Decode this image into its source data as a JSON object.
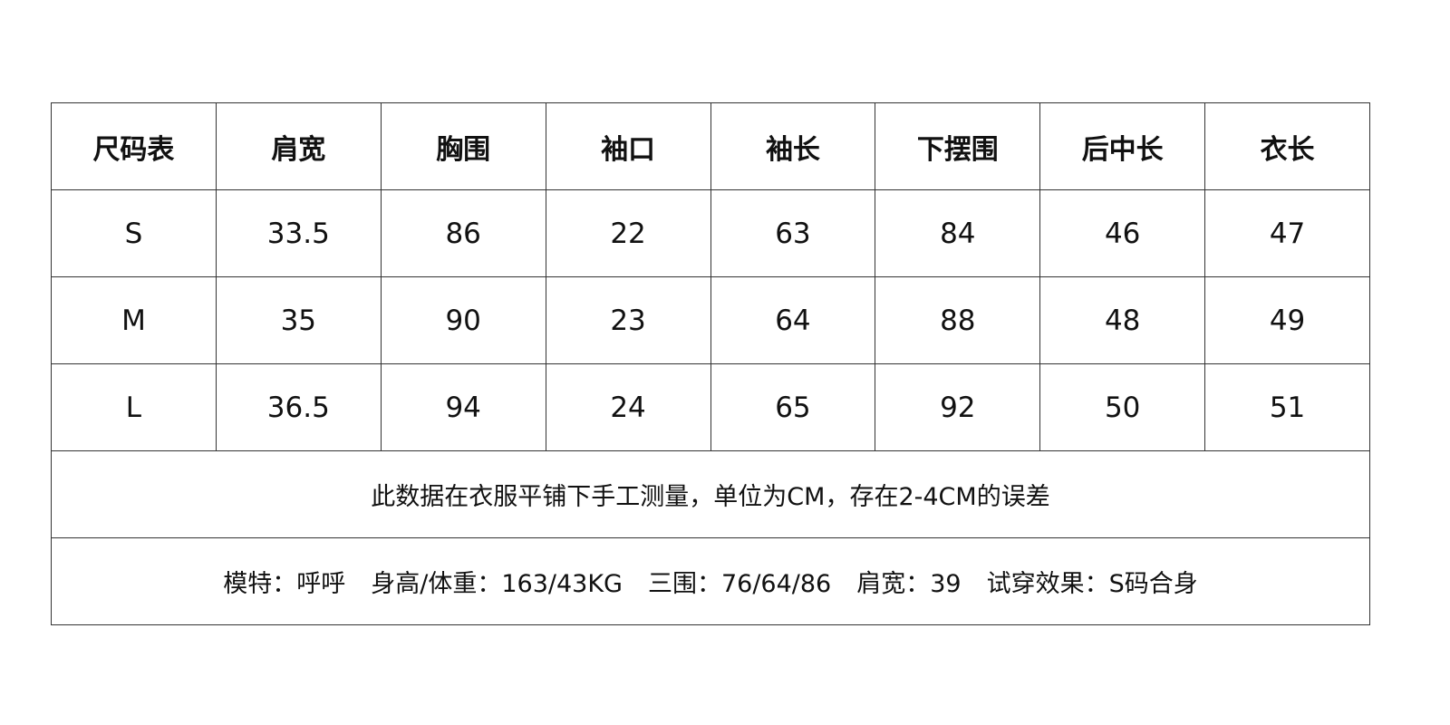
{
  "headers": [
    "尺码表",
    "肩宽",
    "胸围",
    "袖口",
    "袖长",
    "下摆围",
    "后中长",
    "衣长"
  ],
  "rows": [
    [
      "S",
      "33.5",
      "86",
      "22",
      "63",
      "84",
      "46",
      "47"
    ],
    [
      "M",
      "35",
      "90",
      "23",
      "64",
      "88",
      "48",
      "49"
    ],
    [
      "L",
      "36.5",
      "94",
      "24",
      "65",
      "92",
      "50",
      "51"
    ]
  ],
  "note": "此数据在衣服平铺下手工测量，单位为CM，存在2-4CM的误差",
  "model_info": [
    "模特：呼呼",
    "身高/体重：163/43KG",
    "三围：76/64/86",
    "肩宽：39",
    "试穿效果：S码合身"
  ]
}
